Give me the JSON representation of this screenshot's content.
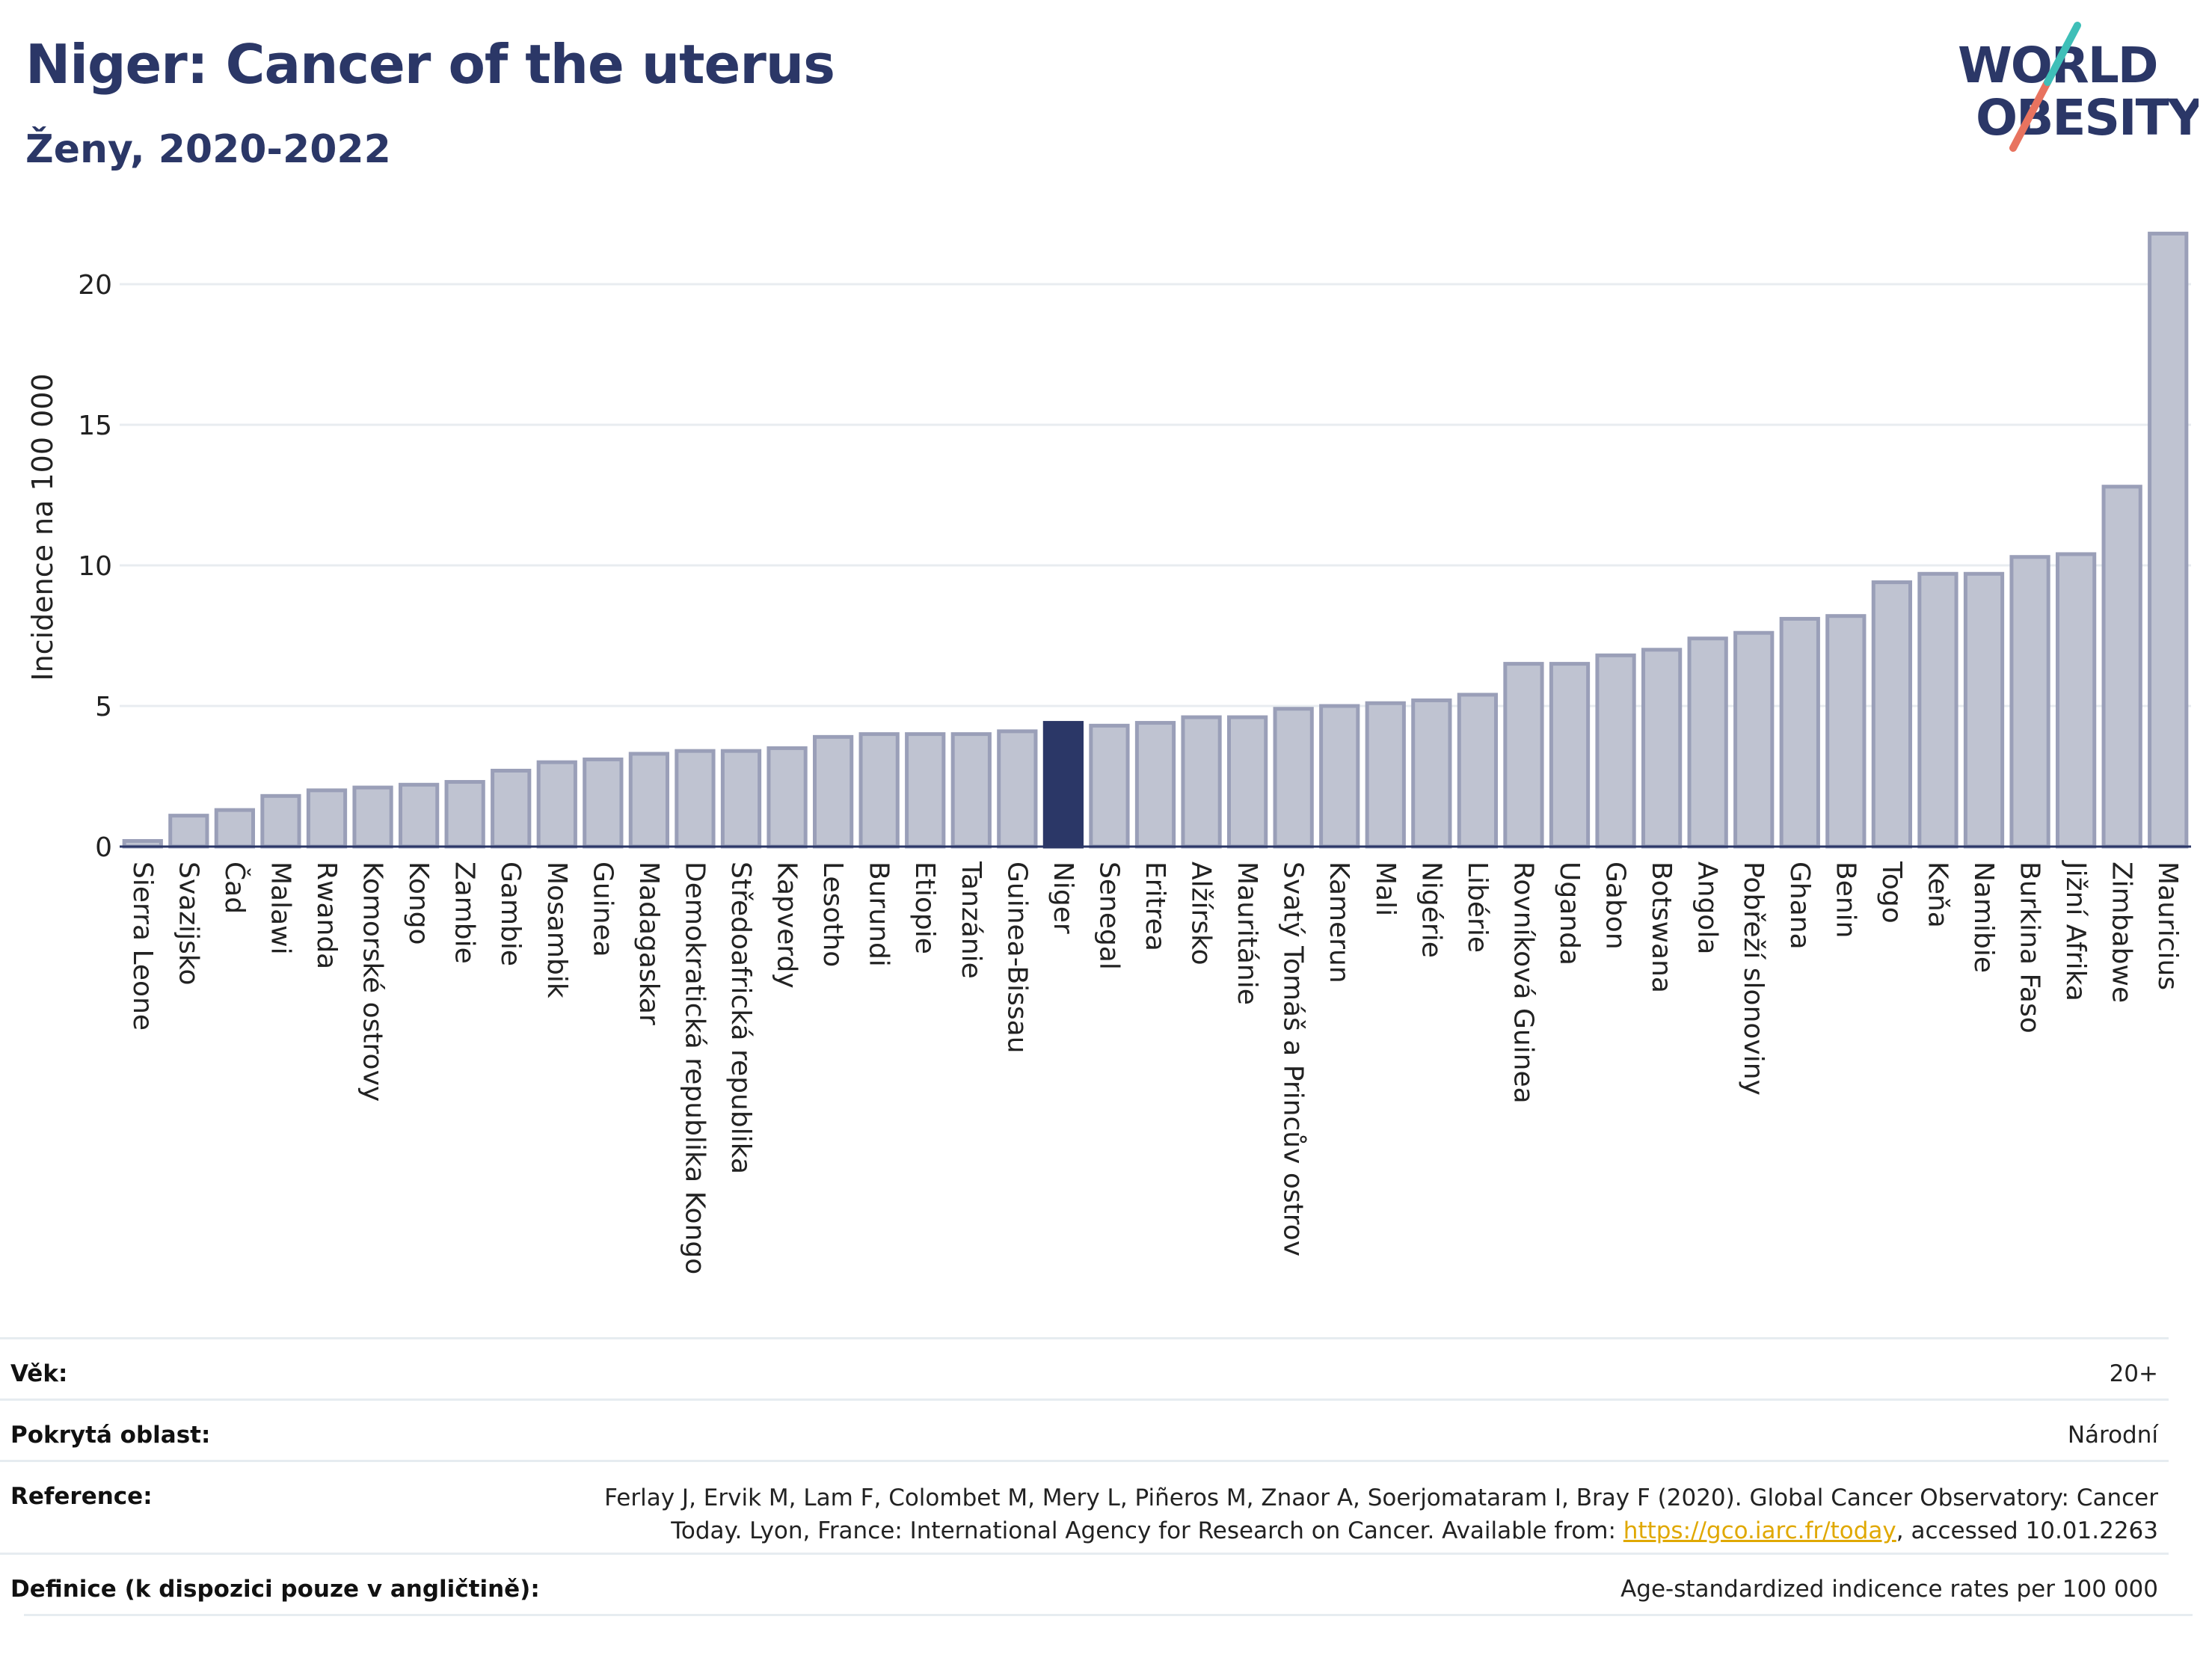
{
  "header": {
    "title": "Niger: Cancer of the uterus",
    "subtitle": "Ženy, 2020-2022"
  },
  "logo": {
    "line1": "WORLD",
    "line2": "OBESITY"
  },
  "colors": {
    "bar_default": "#bfc3d1",
    "bar_default_stroke": "#9a9fb8",
    "bar_highlight": "#2b3767",
    "grid": "#e8ecf0",
    "axis": "#2b3767",
    "title": "#2b3767"
  },
  "chart_data": {
    "type": "bar",
    "title": "Niger: Cancer of the uterus",
    "subtitle": "Ženy, 2020-2022",
    "xlabel": "",
    "ylabel": "Incidence na 100 000",
    "ylim": [
      0,
      22.5
    ],
    "yticks": [
      0,
      5,
      10,
      15,
      20
    ],
    "grid": true,
    "highlight": "Niger",
    "categories": [
      "Sierra Leone",
      "Svazijsko",
      "Čad",
      "Malawi",
      "Rwanda",
      "Komorské ostrovy",
      "Kongo",
      "Zambie",
      "Gambie",
      "Mosambik",
      "Guinea",
      "Madagaskar",
      "Demokratická republika Kongo",
      "Středoafrická republika",
      "Kapverdy",
      "Lesotho",
      "Burundi",
      "Etiopie",
      "Tanzánie",
      "Guinea-Bissau",
      "Niger",
      "Senegal",
      "Eritrea",
      "Alžírsko",
      "Mauritánie",
      "Svatý Tomáš a Princův ostrov",
      "Kamerun",
      "Mali",
      "Nigérie",
      "Libérie",
      "Rovníková Guinea",
      "Uganda",
      "Gabon",
      "Botswana",
      "Angola",
      "Pobřeží slonoviny",
      "Ghana",
      "Benin",
      "Togo",
      "Keňa",
      "Namibie",
      "Burkina Faso",
      "Jižní Afrika",
      "Zimbabwe",
      "Mauricius"
    ],
    "values": [
      0.2,
      1.1,
      1.3,
      1.8,
      2.0,
      2.1,
      2.2,
      2.3,
      2.7,
      3.0,
      3.1,
      3.3,
      3.4,
      3.4,
      3.5,
      3.9,
      4.0,
      4.0,
      4.0,
      4.1,
      4.4,
      4.3,
      4.4,
      4.6,
      4.6,
      4.9,
      5.0,
      5.1,
      5.2,
      5.4,
      6.5,
      6.5,
      6.8,
      7.0,
      7.4,
      7.6,
      8.1,
      8.2,
      9.4,
      9.7,
      9.7,
      10.3,
      10.4,
      12.8,
      21.8
    ]
  },
  "meta": {
    "age_label": "Věk:",
    "age_value": "20+",
    "area_label": "Pokrytá oblast:",
    "area_value": "Národní",
    "reference_label": "Reference:",
    "reference_line1": "Ferlay J, Ervik M, Lam F, Colombet M, Mery L, Piñeros M, Znaor A, Soerjomataram I, Bray F (2020). Global Cancer Observatory: Cancer",
    "reference_line2_pre": "Today. Lyon, France: International Agency for Research on Cancer. Available from: ",
    "reference_link": "https://gco.iarc.fr/today",
    "reference_line2_post": ", accessed 10.01.2263",
    "definition_label": "Definice (k dispozici pouze v angličtině):",
    "definition_value": "Age-standardized indicence rates per 100 000"
  }
}
